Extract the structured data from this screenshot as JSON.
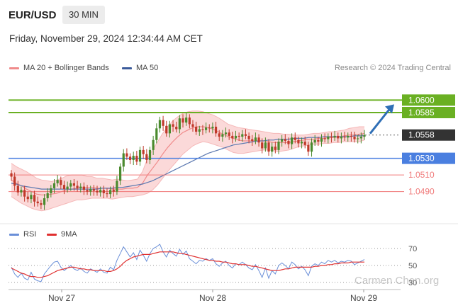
{
  "header": {
    "pair": "EUR/USD",
    "interval": "30 MIN",
    "datetime": "Friday, November 29, 2024 12:34:44 AM CET"
  },
  "legend": {
    "bollinger": "MA 20 + Bollinger Bands",
    "ma50": "MA 50",
    "copyright": "Research © 2024 Trading Central"
  },
  "rsi_legend": {
    "rsi": "RSI",
    "ma": "9MA"
  },
  "watermark": "Carmen Chen.org",
  "colors": {
    "bull": "#4a8a2e",
    "bear": "#c0392b",
    "band_fill": "#fbd9d9",
    "ma20": "#f08a8a",
    "ma50": "#5b78b0",
    "resistance": "#6ab023",
    "support": "#4a7fe0",
    "minor_support": "#f07a7a",
    "arrow": "#2f6fb6",
    "rsi": "#6a8fd8",
    "rsi_ma": "#e03030",
    "current": "#333333"
  },
  "chart_data": [
    {
      "type": "candlestick",
      "title": "EUR/USD 30 MIN",
      "x_labels": [
        "Nov 27",
        "Nov 28",
        "Nov 29"
      ],
      "ylim": [
        1.0465,
        1.0625
      ],
      "levels": [
        {
          "value": 1.06,
          "label": "1.0600",
          "kind": "resistance"
        },
        {
          "value": 1.0585,
          "label": "1.0585",
          "kind": "resistance"
        },
        {
          "value": 1.0558,
          "label": "1.0558",
          "kind": "current"
        },
        {
          "value": 1.053,
          "label": "1.0530",
          "kind": "support"
        },
        {
          "value": 1.051,
          "label": "1.0510",
          "kind": "minor_support"
        },
        {
          "value": 1.049,
          "label": "1.0490",
          "kind": "minor_support"
        }
      ],
      "close": [
        1.0508,
        1.0497,
        1.0489,
        1.0492,
        1.0484,
        1.0481,
        1.0486,
        1.0478,
        1.0476,
        1.0474,
        1.0482,
        1.0488,
        1.0494,
        1.05,
        1.0504,
        1.0498,
        1.0493,
        1.0496,
        1.05,
        1.0497,
        1.0494,
        1.0496,
        1.0492,
        1.049,
        1.0493,
        1.0491,
        1.0489,
        1.0492,
        1.0488,
        1.0487,
        1.0492,
        1.049,
        1.0503,
        1.052,
        1.0536,
        1.0532,
        1.0528,
        1.0533,
        1.0526,
        1.054,
        1.0535,
        1.0528,
        1.054,
        1.0552,
        1.0566,
        1.0576,
        1.0569,
        1.056,
        1.0571,
        1.0568,
        1.0565,
        1.0578,
        1.0573,
        1.0579,
        1.0571,
        1.0568,
        1.0562,
        1.0565,
        1.0564,
        1.0567,
        1.0566,
        1.0568,
        1.056,
        1.0556,
        1.0559,
        1.0561,
        1.0557,
        1.0554,
        1.0557,
        1.0556,
        1.0559,
        1.0557,
        1.0553,
        1.0551,
        1.0555,
        1.0549,
        1.0542,
        1.0549,
        1.0538,
        1.0544,
        1.054,
        1.055,
        1.0553,
        1.0551,
        1.0547,
        1.0555,
        1.0552,
        1.0548,
        1.055,
        1.0546,
        1.0538,
        1.0549,
        1.0552,
        1.055,
        1.0554,
        1.0553,
        1.0556,
        1.0555,
        1.0557,
        1.0554,
        1.0556,
        1.0555,
        1.0557,
        1.0556,
        1.0553,
        1.0554,
        1.0556,
        1.0558
      ],
      "bollinger": {
        "upper": [
          1.0524,
          1.052,
          1.0517,
          1.0514,
          1.051,
          1.0506,
          1.0504,
          1.0503,
          1.0502,
          1.0504,
          1.0506,
          1.0509,
          1.051,
          1.051,
          1.051,
          1.0508,
          1.0508,
          1.0506,
          1.0506,
          1.0505,
          1.0504,
          1.0505,
          1.0504,
          1.0503,
          1.0504,
          1.0505,
          1.0514,
          1.053,
          1.054,
          1.055,
          1.056,
          1.0568,
          1.0575,
          1.058,
          1.0584,
          1.0586,
          1.0587,
          1.0587,
          1.0586,
          1.0584,
          1.0582,
          1.0579,
          1.0575,
          1.0571,
          1.0569,
          1.0567,
          1.0566,
          1.0565,
          1.0564,
          1.0563,
          1.0562,
          1.0561,
          1.056,
          1.056,
          1.0559,
          1.0559,
          1.0558,
          1.0558,
          1.0558,
          1.0559,
          1.056,
          1.056,
          1.0561,
          1.0562,
          1.0562,
          1.0563,
          1.0564,
          1.0566,
          1.0567,
          1.0568,
          1.0568
        ],
        "lower": [
          1.0484,
          1.048,
          1.0476,
          1.0473,
          1.047,
          1.0468,
          1.0467,
          1.0468,
          1.047,
          1.0472,
          1.0474,
          1.0476,
          1.0478,
          1.048,
          1.048,
          1.0481,
          1.0482,
          1.0482,
          1.0482,
          1.0482,
          1.0481,
          1.0482,
          1.0483,
          1.0484,
          1.0484,
          1.0485,
          1.0486,
          1.0488,
          1.0492,
          1.0498,
          1.0506,
          1.0514,
          1.0521,
          1.0528,
          1.0535,
          1.054,
          1.0545,
          1.0548,
          1.055,
          1.0549,
          1.0547,
          1.0545,
          1.0543,
          1.054,
          1.0537,
          1.0536,
          1.0536,
          1.0537,
          1.0538,
          1.0539,
          1.054,
          1.054,
          1.0539,
          1.0538,
          1.0539,
          1.054,
          1.0542,
          1.0544,
          1.0545,
          1.0546,
          1.0547,
          1.0547,
          1.0548,
          1.0548,
          1.0549,
          1.0549,
          1.055,
          1.055,
          1.055,
          1.055,
          1.0552
        ],
        "middle": [
          1.0504,
          1.05,
          1.0497,
          1.0493,
          1.049,
          1.0487,
          1.0486,
          1.0486,
          1.0487,
          1.0488,
          1.049,
          1.0492,
          1.0493,
          1.0494,
          1.0495,
          1.0495,
          1.0495,
          1.0494,
          1.0494,
          1.0494,
          1.0493,
          1.0493,
          1.0493,
          1.0494,
          1.0494,
          1.0495,
          1.05,
          1.051,
          1.0518,
          1.0526,
          1.0535,
          1.0543,
          1.055,
          1.0556,
          1.0561,
          1.0564,
          1.0567,
          1.0568,
          1.0568,
          1.0567,
          1.0565,
          1.0562,
          1.0559,
          1.0556,
          1.0554,
          1.0552,
          1.0551,
          1.0551,
          1.0551,
          1.0551,
          1.0551,
          1.055,
          1.0549,
          1.0549,
          1.0549,
          1.0549,
          1.055,
          1.0551,
          1.0552,
          1.0553,
          1.0553,
          1.0554,
          1.0554,
          1.0555,
          1.0555,
          1.0556,
          1.0557,
          1.0558,
          1.0558,
          1.0559,
          1.056
        ]
      },
      "ma50": [
        1.05,
        1.0499,
        1.0497,
        1.0496,
        1.0495,
        1.0494,
        1.0493,
        1.0493,
        1.0493,
        1.0493,
        1.0493,
        1.0493,
        1.0493,
        1.0493,
        1.0493,
        1.0493,
        1.0493,
        1.0493,
        1.0494,
        1.0494,
        1.0494,
        1.0495,
        1.0495,
        1.0496,
        1.0497,
        1.0498,
        1.0499,
        1.0501,
        1.0503,
        1.0506,
        1.0509,
        1.0512,
        1.0515,
        1.0518,
        1.0521,
        1.0524,
        1.0527,
        1.053,
        1.0533,
        1.0536,
        1.0538,
        1.054,
        1.0542,
        1.0544,
        1.0546,
        1.0547,
        1.0548,
        1.0549,
        1.055,
        1.0551,
        1.0551,
        1.0552,
        1.0552,
        1.0553,
        1.0553,
        1.0553,
        1.0554,
        1.0554,
        1.0554,
        1.0555,
        1.0555,
        1.0555,
        1.0556,
        1.0556,
        1.0556,
        1.0556,
        1.0556,
        1.0556,
        1.0557,
        1.0557,
        1.0557
      ]
    },
    {
      "type": "line",
      "title": "RSI",
      "ylim": [
        25,
        75
      ],
      "ticks": [
        "70",
        "50",
        "30"
      ],
      "series": [
        {
          "name": "RSI",
          "values": [
            48,
            40,
            36,
            41,
            35,
            33,
            42,
            34,
            32,
            31,
            40,
            45,
            50,
            54,
            55,
            48,
            44,
            47,
            50,
            46,
            44,
            47,
            43,
            41,
            46,
            44,
            42,
            46,
            42,
            41,
            48,
            45,
            56,
            64,
            72,
            66,
            60,
            65,
            57,
            68,
            62,
            55,
            64,
            70,
            72,
            75,
            66,
            60,
            68,
            64,
            61,
            69,
            63,
            67,
            58,
            55,
            52,
            56,
            55,
            58,
            56,
            58,
            52,
            49,
            53,
            55,
            50,
            47,
            52,
            51,
            54,
            51,
            47,
            45,
            51,
            44,
            36,
            47,
            35,
            44,
            40,
            50,
            53,
            50,
            46,
            54,
            51,
            46,
            49,
            45,
            38,
            49,
            52,
            50,
            54,
            52,
            56,
            54,
            56,
            53,
            55,
            54,
            56,
            55,
            51,
            53,
            55,
            57
          ]
        },
        {
          "name": "9MA",
          "values": [
            47,
            45,
            43,
            41,
            40,
            38,
            37,
            37,
            36,
            36,
            37,
            38,
            40,
            42,
            44,
            45,
            46,
            47,
            48,
            48,
            47,
            46,
            46,
            45,
            45,
            44,
            44,
            44,
            44,
            43,
            43,
            44,
            46,
            49,
            53,
            56,
            58,
            60,
            61,
            62,
            63,
            63,
            63,
            64,
            65,
            66,
            66,
            66,
            66,
            66,
            65,
            64,
            64,
            63,
            62,
            61,
            60,
            59,
            58,
            57,
            56,
            56,
            55,
            55,
            54,
            54,
            53,
            52,
            52,
            51,
            51,
            51,
            50,
            49,
            49,
            48,
            47,
            46,
            45,
            44,
            44,
            44,
            45,
            46,
            46,
            47,
            48,
            48,
            48,
            48,
            48,
            48,
            49,
            49,
            50,
            50,
            51,
            51,
            52,
            52,
            53,
            53,
            53,
            54,
            54,
            54,
            54,
            54
          ]
        }
      ]
    }
  ]
}
